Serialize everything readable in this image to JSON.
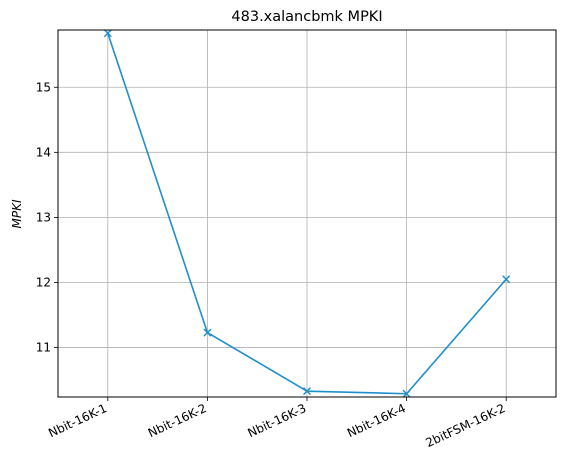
{
  "chart_data": {
    "type": "line",
    "title": "483.xalancbmk MPKI",
    "xlabel": "",
    "ylabel": "MPKI",
    "categories": [
      "Nbit-16K-1",
      "Nbit-16K-2",
      "Nbit-16K-3",
      "Nbit-16K-4",
      "2bitFSM-16K-2"
    ],
    "series": [
      {
        "values": [
          15.83,
          11.23,
          10.33,
          10.29,
          12.05
        ],
        "color": "#1f8fcc",
        "marker": "x"
      }
    ],
    "yticks": [
      11,
      12,
      13,
      14,
      15
    ],
    "ylim": [
      10.24,
      15.88
    ],
    "grid": true,
    "legend": false,
    "x_tick_rotation": "rotated"
  }
}
